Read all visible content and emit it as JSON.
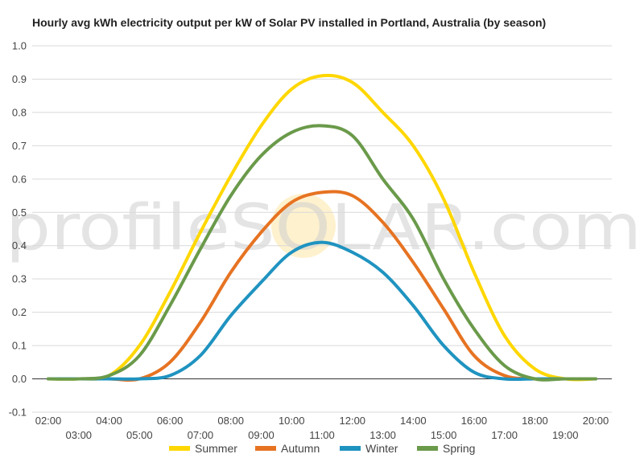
{
  "chart_data": {
    "type": "line",
    "title": "Hourly avg kWh electricity output per kW of Solar PV installed in Portland, Australia (by season)",
    "xlabel": "",
    "ylabel": "",
    "x": [
      "02:00",
      "03:00",
      "04:00",
      "05:00",
      "06:00",
      "07:00",
      "08:00",
      "09:00",
      "10:00",
      "11:00",
      "12:00",
      "13:00",
      "14:00",
      "15:00",
      "16:00",
      "17:00",
      "18:00",
      "19:00",
      "20:00"
    ],
    "ylim": [
      -0.1,
      1.0
    ],
    "yticks": [
      "-0.1",
      "0.0",
      "0.1",
      "0.2",
      "0.3",
      "0.4",
      "0.5",
      "0.6",
      "0.7",
      "0.8",
      "0.9",
      "1.0"
    ],
    "grid": true,
    "legend": "bottom",
    "series": [
      {
        "name": "Summer",
        "color": "#ffd700",
        "values": [
          0.0,
          0.0,
          0.01,
          0.1,
          0.26,
          0.44,
          0.61,
          0.76,
          0.87,
          0.91,
          0.89,
          0.8,
          0.7,
          0.54,
          0.32,
          0.13,
          0.03,
          0.0,
          0.0
        ]
      },
      {
        "name": "Autumn",
        "color": "#e67322",
        "values": [
          0.0,
          0.0,
          0.0,
          0.0,
          0.05,
          0.17,
          0.32,
          0.44,
          0.53,
          0.56,
          0.55,
          0.47,
          0.35,
          0.21,
          0.07,
          0.01,
          0.0,
          0.0,
          0.0
        ]
      },
      {
        "name": "Winter",
        "color": "#1f93c0",
        "values": [
          0.0,
          0.0,
          0.0,
          0.0,
          0.01,
          0.07,
          0.19,
          0.29,
          0.38,
          0.41,
          0.38,
          0.32,
          0.22,
          0.1,
          0.02,
          0.0,
          0.0,
          0.0,
          0.0
        ]
      },
      {
        "name": "Spring",
        "color": "#6a9a4a",
        "values": [
          0.0,
          0.0,
          0.01,
          0.07,
          0.22,
          0.39,
          0.55,
          0.67,
          0.74,
          0.76,
          0.73,
          0.6,
          0.48,
          0.3,
          0.15,
          0.04,
          0.0,
          0.0,
          0.0
        ]
      }
    ],
    "watermark": "profileSOLAR.com"
  }
}
